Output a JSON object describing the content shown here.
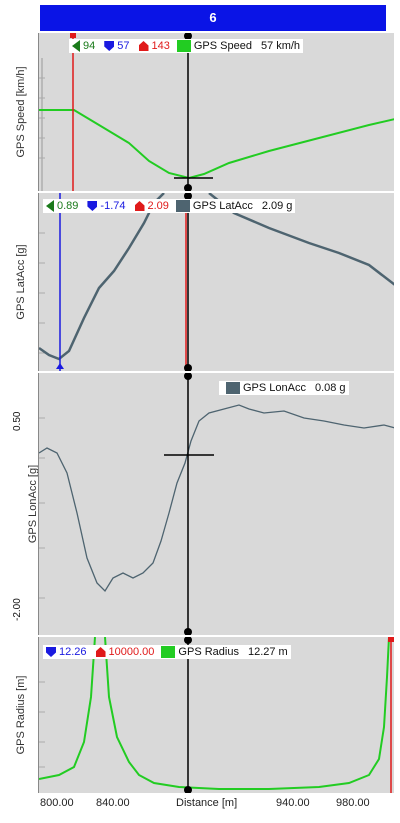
{
  "header": {
    "title": "6"
  },
  "panels": {
    "speed": {
      "ylabel": "GPS Speed [km/h]",
      "legend": {
        "left_val": "94",
        "min_val": "57",
        "max_val": "143",
        "channel": "GPS Speed",
        "value": "57",
        "unit": "km/h"
      },
      "swatch_color": "#22cc22"
    },
    "latacc": {
      "ylabel": "GPS LatAcc [g]",
      "legend": {
        "left_val": "0.89",
        "min_val": "-1.74",
        "max_val": "2.09",
        "channel": "GPS LatAcc",
        "value": "2.09",
        "unit": "g"
      },
      "swatch_color": "#4e6470"
    },
    "lonacc": {
      "ylabel": "GPS LonAcc [g]",
      "legend": {
        "channel": "GPS LonAcc",
        "value": "0.08",
        "unit": "g"
      },
      "yticks": [
        "0.50",
        "-2.00"
      ],
      "swatch_color": "#4e6470"
    },
    "radius": {
      "ylabel": "GPS Radius [m]",
      "legend": {
        "min_val": "12.26",
        "max_val": "10000.00",
        "channel": "GPS Radius",
        "value": "12.27",
        "unit": "m"
      },
      "swatch_color": "#22cc22"
    }
  },
  "xaxis": {
    "label": "Distance [m]",
    "ticks": [
      "800.00",
      "840.00",
      "940.00",
      "980.00"
    ]
  },
  "colors": {
    "accent": "#0a14e6",
    "green": "#22cc22",
    "gray_trace": "#4e6470"
  }
}
